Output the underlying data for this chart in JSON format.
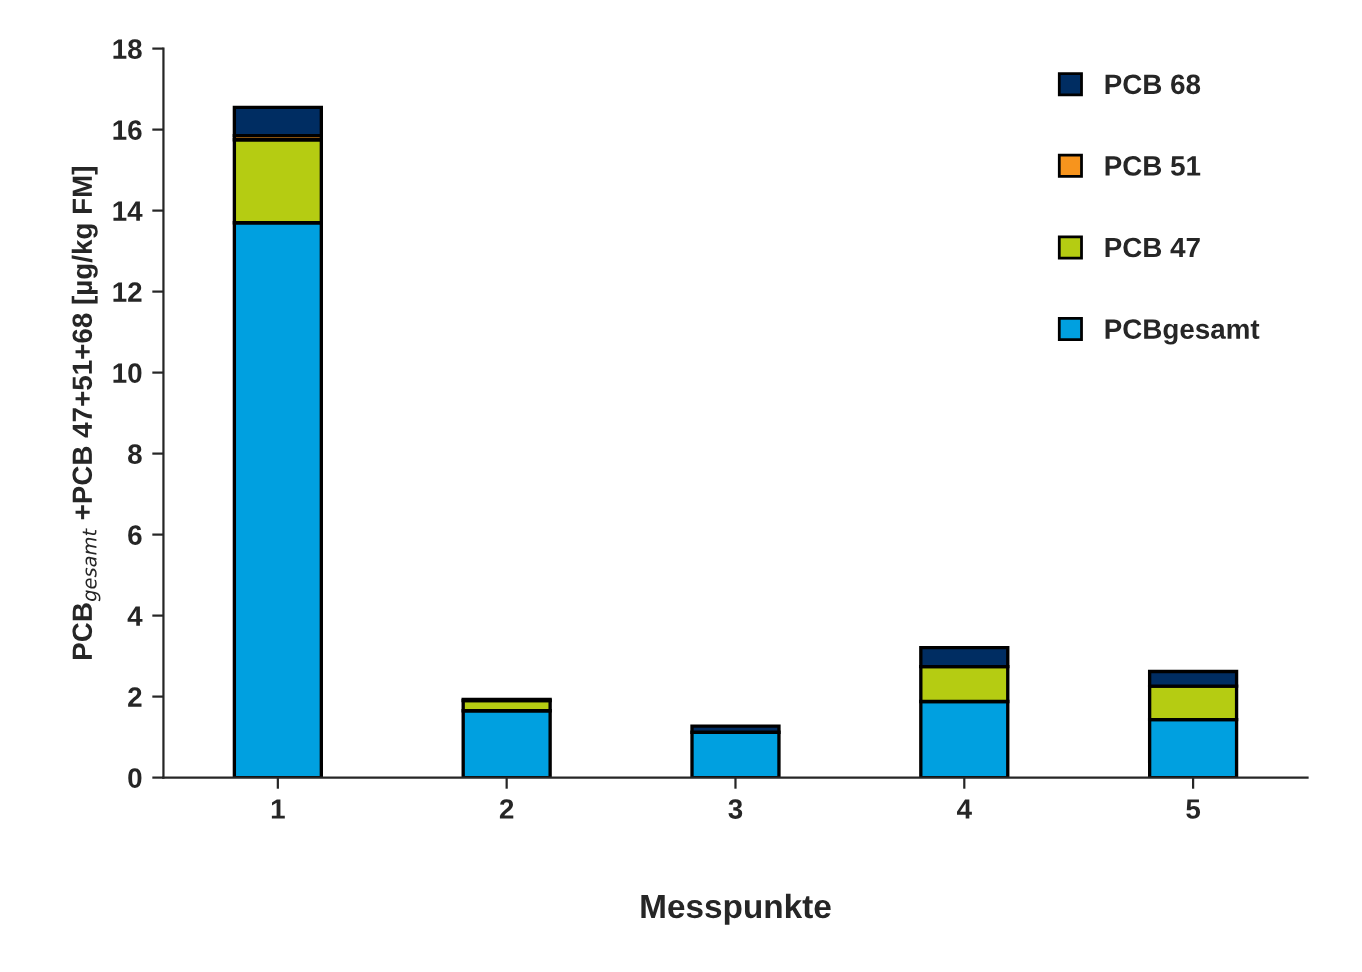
{
  "chart_data": {
    "type": "bar",
    "stacked": true,
    "xlabel": "Messpunkte",
    "ylabel": "PCB$_{gesamt}$ +PCB 47+51+68 [µg/kg FM]",
    "categories": [
      "1",
      "2",
      "3",
      "4",
      "5"
    ],
    "series": [
      {
        "name": "PCBgesamt",
        "color": "#00a0e0",
        "values": [
          13.7,
          1.65,
          1.12,
          1.88,
          1.43
        ]
      },
      {
        "name": "PCB 47",
        "color": "#b5cc12",
        "values": [
          2.05,
          0.25,
          null,
          0.86,
          0.83
        ]
      },
      {
        "name": "PCB 51",
        "color": "#f7941d",
        "values": [
          0.1,
          null,
          null,
          null,
          null
        ]
      },
      {
        "name": "PCB 68",
        "color": "#002d62",
        "values": [
          0.7,
          0.03,
          0.15,
          0.47,
          0.36
        ]
      }
    ],
    "ylim": [
      0,
      18
    ],
    "yticks": [
      0,
      2,
      4,
      6,
      8,
      10,
      12,
      14,
      16,
      18
    ],
    "grid": false,
    "legend": "top right"
  }
}
